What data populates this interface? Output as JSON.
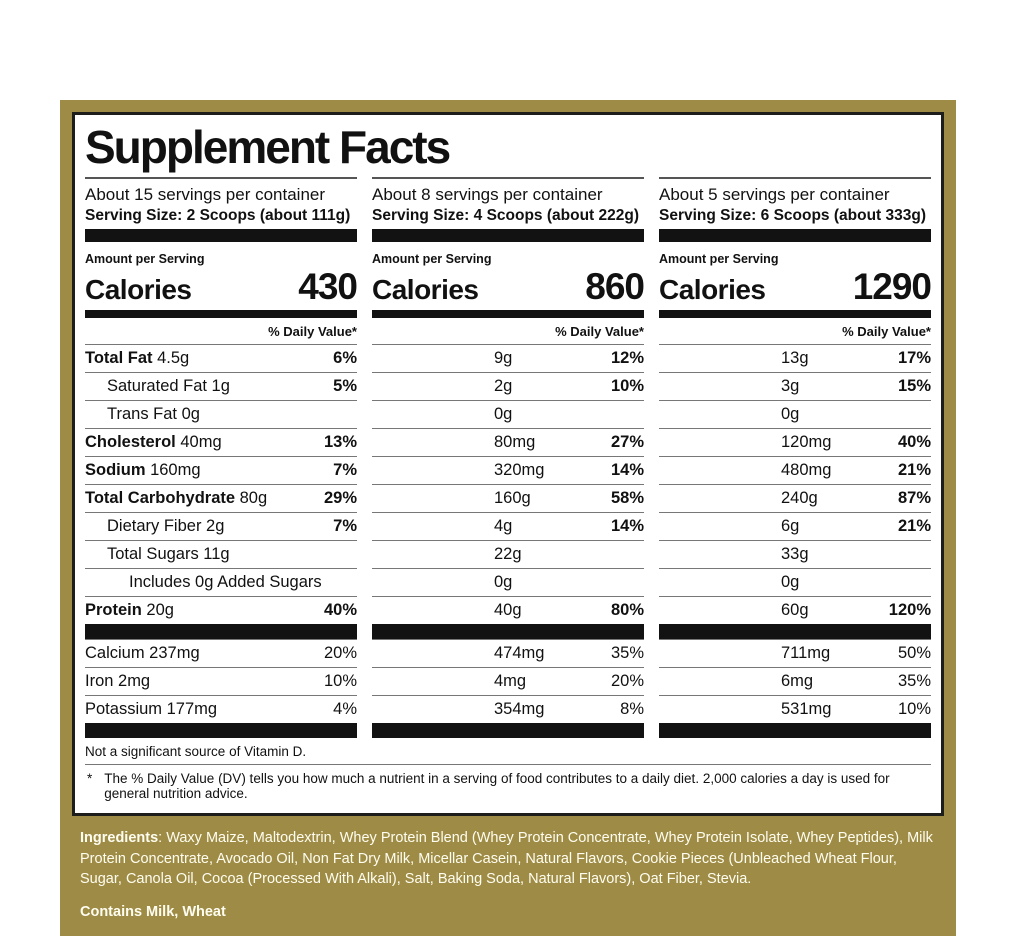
{
  "title": "Supplement Facts",
  "columns": [
    {
      "servings": "About 15 servings per container",
      "serving_size": "Serving Size:  2 Scoops (about 111g)",
      "amount_per_serving": "Amount per Serving",
      "calories_label": "Calories",
      "calories": "430",
      "daily_value_header": "% Daily Value*"
    },
    {
      "servings": "About 8 servings per container",
      "serving_size": "Serving Size: 4 Scoops (about 222g)",
      "amount_per_serving": "Amount per Serving",
      "calories_label": "Calories",
      "calories": "860",
      "daily_value_header": "% Daily Value*"
    },
    {
      "servings": "About 5 servings per container",
      "serving_size": "Serving Size: 6 Scoops (about 333g)",
      "amount_per_serving": "Amount per Serving",
      "calories_label": "Calories",
      "calories": "1290",
      "daily_value_header": "% Daily Value*"
    }
  ],
  "nutrients": [
    {
      "bold": "Total Fat",
      "plain": "4.5g",
      "indent": 0,
      "amounts": [
        "",
        "9g",
        "13g"
      ],
      "dv": [
        "6%",
        "12%",
        "17%"
      ],
      "dv_strong": true
    },
    {
      "bold": "",
      "plain": "Saturated Fat 1g",
      "indent": 1,
      "amounts": [
        "",
        "2g",
        "3g"
      ],
      "dv": [
        "5%",
        "10%",
        "15%"
      ],
      "dv_strong": true
    },
    {
      "bold": "",
      "plain": "Trans Fat 0g",
      "indent": 1,
      "amounts": [
        "",
        "0g",
        "0g"
      ],
      "dv": [
        "",
        "",
        ""
      ],
      "dv_strong": false
    },
    {
      "bold": "Cholesterol",
      "plain": "40mg",
      "indent": 0,
      "amounts": [
        "",
        "80mg",
        "120mg"
      ],
      "dv": [
        "13%",
        "27%",
        "40%"
      ],
      "dv_strong": true
    },
    {
      "bold": "Sodium",
      "plain": "160mg",
      "indent": 0,
      "amounts": [
        "",
        "320mg",
        "480mg"
      ],
      "dv": [
        "7%",
        "14%",
        "21%"
      ],
      "dv_strong": true
    },
    {
      "bold": "Total Carbohydrate",
      "plain": "80g",
      "indent": 0,
      "amounts": [
        "",
        "160g",
        "240g"
      ],
      "dv": [
        "29%",
        "58%",
        "87%"
      ],
      "dv_strong": true
    },
    {
      "bold": "",
      "plain": "Dietary Fiber 2g",
      "indent": 1,
      "amounts": [
        "",
        "4g",
        "6g"
      ],
      "dv": [
        "7%",
        "14%",
        "21%"
      ],
      "dv_strong": true
    },
    {
      "bold": "",
      "plain": "Total Sugars 11g",
      "indent": 1,
      "amounts": [
        "",
        "22g",
        "33g"
      ],
      "dv": [
        "",
        "",
        ""
      ],
      "dv_strong": false
    },
    {
      "bold": "",
      "plain": "Includes 0g Added Sugars",
      "indent": 2,
      "amounts": [
        "",
        "0g",
        "0g"
      ],
      "dv": [
        "",
        "",
        ""
      ],
      "dv_strong": false
    },
    {
      "bold": "Protein",
      "plain": "20g",
      "indent": 0,
      "amounts": [
        "",
        "40g",
        "60g"
      ],
      "dv": [
        "40%",
        "80%",
        "120%"
      ],
      "dv_strong": true
    }
  ],
  "minerals": [
    {
      "bold": "",
      "plain": "Calcium 237mg",
      "indent": 0,
      "amounts": [
        "",
        "474mg",
        "711mg"
      ],
      "dv": [
        "20%",
        "35%",
        "50%"
      ],
      "dv_strong": false
    },
    {
      "bold": "",
      "plain": "Iron 2mg",
      "indent": 0,
      "amounts": [
        "",
        "4mg",
        "6mg"
      ],
      "dv": [
        "10%",
        "20%",
        "35%"
      ],
      "dv_strong": false
    },
    {
      "bold": "",
      "plain": "Potassium 177mg",
      "indent": 0,
      "amounts": [
        "",
        "354mg",
        "531mg"
      ],
      "dv": [
        "4%",
        "8%",
        "10%"
      ],
      "dv_strong": false
    }
  ],
  "footnotes": {
    "vitamin_note": "Not a significant source of Vitamin D.",
    "asterisk": "*",
    "daily_value_note": "The % Daily Value (DV) tells you how much a nutrient in a serving of food contributes to a daily diet. 2,000 calories a day is used for general nutrition advice."
  },
  "ingredients": {
    "label": "Ingredients",
    "text": ": Waxy Maize, Maltodextrin, Whey Protein Blend (Whey Protein Concentrate, Whey Protein Isolate, Whey Peptides), Milk Protein Concentrate, Avocado Oil, Non Fat Dry Milk, Micellar Casein, Natural Flavors, Cookie Pieces (Unbleached Wheat Flour, Sugar, Canola Oil, Cocoa (Processed With Alkali), Salt, Baking Soda, Natural Flavors), Oat Fiber, Stevia.",
    "contains": "Contains Milk, Wheat"
  },
  "colors": {
    "gold": "#9e8c46",
    "panel_border": "#1d1d1b",
    "bar": "#121212",
    "hairline": "#777777",
    "ingredients_text": "#fffdf0"
  }
}
